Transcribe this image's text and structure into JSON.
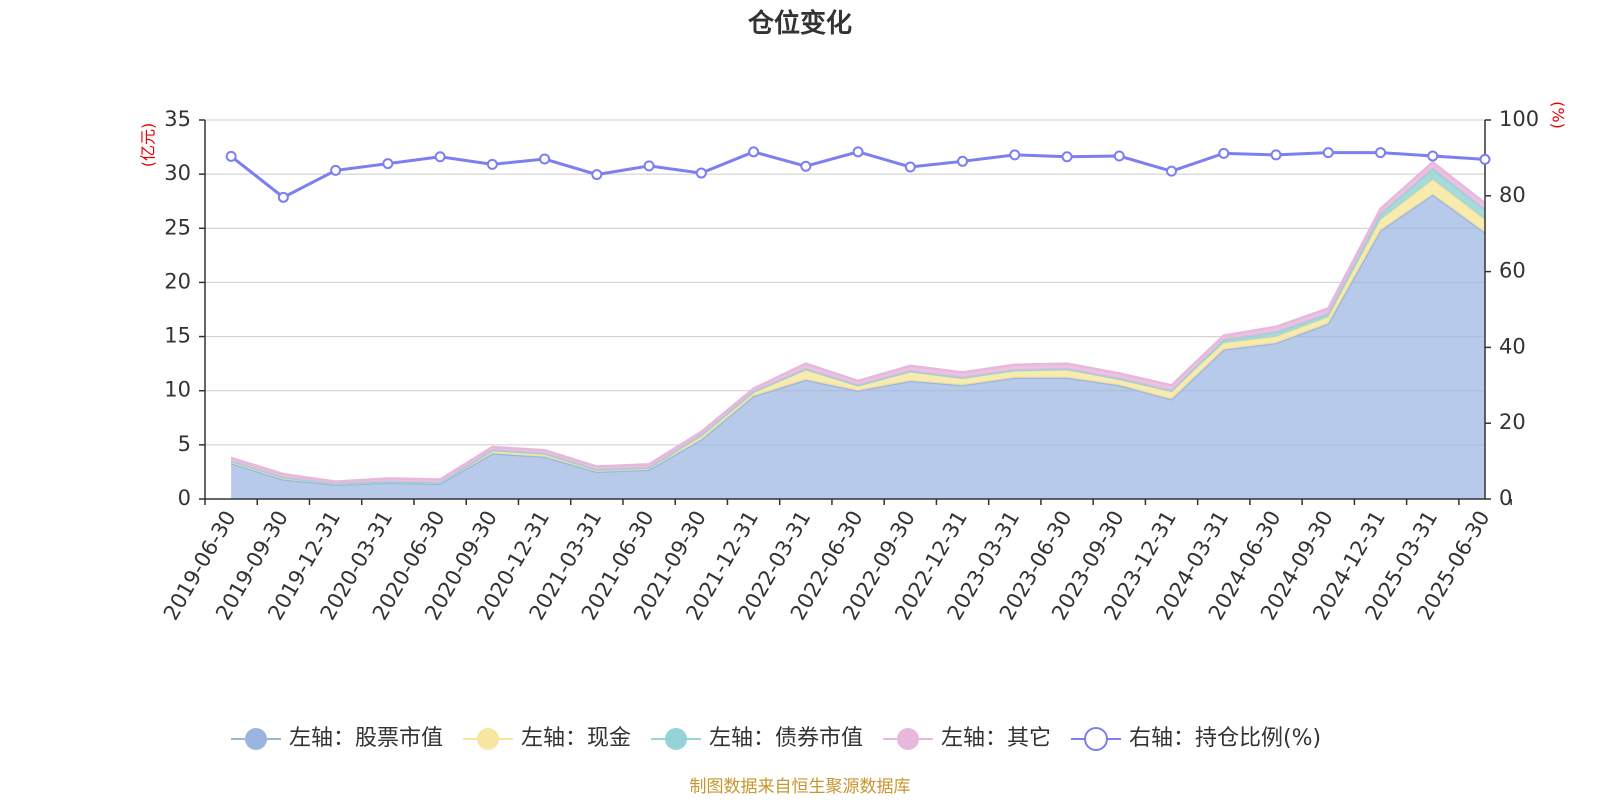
{
  "title": "仓位变化",
  "left_unit": "(亿元)",
  "right_unit": "(%)",
  "source": "制图数据来自恒生聚源数据库",
  "colors": {
    "stock": "#9bb5e0",
    "cash": "#f8e6a0",
    "bond": "#96d3d6",
    "other": "#e8b8dc",
    "ratio": "#7b7ff0",
    "grid": "#cccccc",
    "axis": "#333333"
  },
  "chart_data": {
    "type": "area",
    "categories": [
      "2019-06-30",
      "2019-09-30",
      "2019-12-31",
      "2020-03-31",
      "2020-06-30",
      "2020-09-30",
      "2020-12-31",
      "2021-03-31",
      "2021-06-30",
      "2021-09-30",
      "2021-12-31",
      "2022-03-31",
      "2022-06-30",
      "2022-09-30",
      "2022-12-31",
      "2023-03-31",
      "2023-06-30",
      "2023-09-30",
      "2023-12-31",
      "2024-03-31",
      "2024-06-30",
      "2024-09-30",
      "2024-12-31",
      "2025-03-31",
      "2025-06-30"
    ],
    "y_left": {
      "min": 0,
      "max": 35,
      "ticks": [
        0,
        5,
        10,
        15,
        20,
        25,
        30,
        35
      ]
    },
    "y_right": {
      "min": 0,
      "max": 100,
      "ticks": [
        0,
        20,
        40,
        60,
        80,
        100
      ]
    },
    "stacked_series": [
      {
        "key": "stock",
        "name": "左轴：股票市值",
        "values": [
          3.3,
          1.8,
          1.3,
          1.5,
          1.4,
          4.2,
          3.9,
          2.5,
          2.7,
          5.5,
          9.5,
          11.0,
          10.0,
          10.9,
          10.5,
          11.2,
          11.2,
          10.5,
          9.2,
          13.8,
          14.4,
          16.2,
          24.8,
          28.1,
          24.6
        ]
      },
      {
        "key": "cash",
        "name": "左轴：现金",
        "values": [
          0.2,
          0.2,
          0.1,
          0.1,
          0.1,
          0.3,
          0.3,
          0.2,
          0.2,
          0.4,
          0.4,
          1.0,
          0.5,
          0.9,
          0.7,
          0.7,
          0.8,
          0.6,
          0.8,
          0.6,
          0.6,
          0.6,
          1.0,
          1.4,
          1.2
        ]
      },
      {
        "key": "bond",
        "name": "左轴：债券市值",
        "values": [
          0,
          0,
          0,
          0,
          0,
          0,
          0,
          0,
          0,
          0,
          0,
          0,
          0,
          0,
          0,
          0,
          0,
          0,
          0,
          0.3,
          0.4,
          0.3,
          0.5,
          1.0,
          0.9
        ]
      },
      {
        "key": "other",
        "name": "左轴：其它",
        "values": [
          0.3,
          0.3,
          0.2,
          0.3,
          0.3,
          0.3,
          0.3,
          0.3,
          0.3,
          0.3,
          0.3,
          0.5,
          0.4,
          0.5,
          0.5,
          0.5,
          0.5,
          0.5,
          0.5,
          0.4,
          0.5,
          0.5,
          0.5,
          0.6,
          0.6
        ]
      }
    ],
    "line_series": {
      "key": "ratio",
      "name": "右轴：持仓比例(%)",
      "axis": "right",
      "values": [
        90.4,
        79.6,
        86.7,
        88.5,
        90.3,
        88.3,
        89.7,
        85.6,
        87.9,
        86.0,
        91.6,
        87.8,
        91.6,
        87.6,
        89.1,
        90.8,
        90.3,
        90.5,
        86.5,
        91.2,
        90.8,
        91.4,
        91.4,
        90.5,
        89.6
      ]
    },
    "grid": true,
    "legend_position": "bottom"
  }
}
